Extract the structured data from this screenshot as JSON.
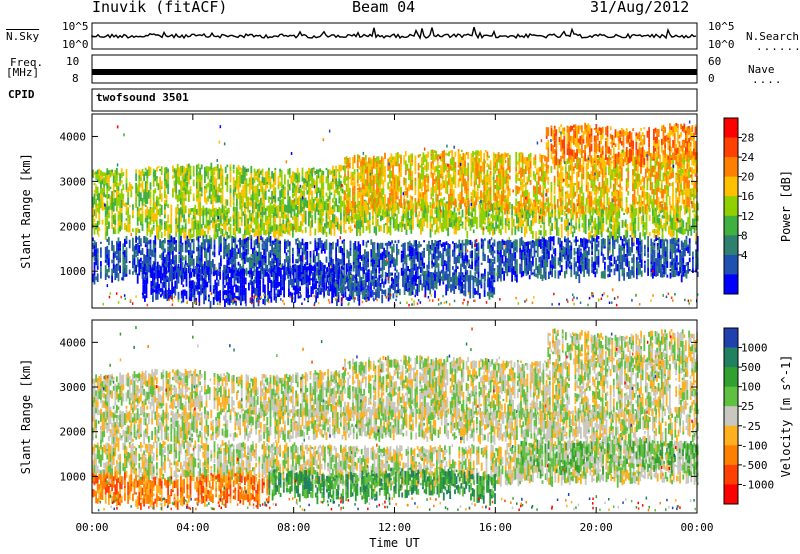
{
  "header": {
    "station": "Inuvik (fitACF)",
    "beam": "Beam 04",
    "date": "31/Aug/2012"
  },
  "panels": {
    "nsky_label": "N.Sky",
    "nsearch_label": "N.Search",
    "freq_label_line1": "Freq.",
    "freq_label_line2": "[MHz]",
    "nave_label": "Nave",
    "cpid_label": "CPID",
    "cpid_value": "twofsound 3501",
    "nsky_ticks": [
      "10^5",
      "10^0"
    ],
    "nsearch_ticks": [
      "10^5",
      "10^0"
    ],
    "freq_ticks": [
      "10",
      "8"
    ],
    "nave_ticks": [
      "60",
      "0"
    ]
  },
  "chart_data": [
    {
      "type": "heatmap",
      "name": "power",
      "ylabel": "Slant Range [km]",
      "xlabel": "Time UT",
      "ylim": [
        180,
        4500
      ],
      "y_ticks": [
        1000,
        2000,
        3000,
        4000
      ],
      "x_ticks": [
        "00:00",
        "04:00",
        "08:00",
        "12:00",
        "16:00",
        "20:00",
        "00:00"
      ],
      "colorbar": {
        "label": "Power [dB]",
        "ticks": [
          "28",
          "24",
          "20",
          "16",
          "12",
          "8",
          "4"
        ],
        "colors": [
          "#ff0000",
          "#ff4000",
          "#ff8000",
          "#ffc000",
          "#90d000",
          "#40b040",
          "#308070",
          "#2050b0",
          "#0000ff"
        ]
      },
      "bands": [
        {
          "t0": 0,
          "t1": 24,
          "r0": 900,
          "r1": 1700,
          "level": 7
        },
        {
          "t0": 2,
          "t1": 11,
          "r0": 400,
          "r1": 1100,
          "level": 8
        },
        {
          "t0": 9,
          "t1": 16,
          "r0": 550,
          "r1": 900,
          "level": 7
        },
        {
          "t0": 0,
          "t1": 24,
          "r0": 1900,
          "r1": 2500,
          "level": 4
        },
        {
          "t0": 0,
          "t1": 10,
          "r0": 2500,
          "r1": 3300,
          "level": 4
        },
        {
          "t0": 10,
          "t1": 24,
          "r0": 2400,
          "r1": 3600,
          "level": 3
        },
        {
          "t0": 18,
          "t1": 24,
          "r0": 3500,
          "r1": 4200,
          "level": 2
        }
      ]
    },
    {
      "type": "heatmap",
      "name": "velocity",
      "ylabel": "Slant Range [km]",
      "xlabel": "Time UT",
      "ylim": [
        180,
        4500
      ],
      "y_ticks": [
        1000,
        2000,
        3000,
        4000
      ],
      "x_ticks": [
        "00:00",
        "04:00",
        "08:00",
        "12:00",
        "16:00",
        "20:00",
        "00:00"
      ],
      "colorbar": {
        "label": "Velocity [m s^-1]",
        "ticks": [
          "1000",
          "500",
          "100",
          "25",
          "-25",
          "-100",
          "-500",
          "-1000"
        ],
        "colors": [
          "#2040b0",
          "#208060",
          "#30a030",
          "#60c040",
          "#c8c8c0",
          "#ffb020",
          "#ff8000",
          "#ff4000",
          "#ff0000"
        ]
      },
      "bands": [
        {
          "t0": 0,
          "t1": 24,
          "r0": 900,
          "r1": 1700,
          "level": 4
        },
        {
          "t0": 0,
          "t1": 7,
          "r0": 450,
          "r1": 1000,
          "level": 6
        },
        {
          "t0": 7,
          "t1": 16,
          "r0": 600,
          "r1": 1100,
          "level": 2
        },
        {
          "t0": 17,
          "t1": 24,
          "r0": 1200,
          "r1": 1800,
          "level": 3
        },
        {
          "t0": 0,
          "t1": 24,
          "r0": 1900,
          "r1": 2500,
          "level": 4
        },
        {
          "t0": 0,
          "t1": 10,
          "r0": 2500,
          "r1": 3300,
          "level": 4
        },
        {
          "t0": 10,
          "t1": 24,
          "r0": 2400,
          "r1": 3600,
          "level": 4
        },
        {
          "t0": 18,
          "t1": 24,
          "r0": 3500,
          "r1": 4200,
          "level": 4
        }
      ]
    }
  ]
}
